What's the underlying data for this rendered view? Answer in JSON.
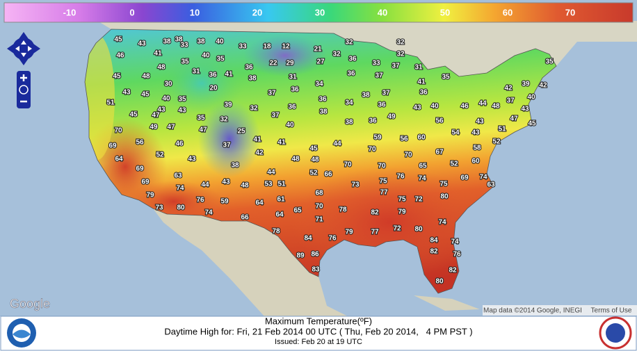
{
  "legend": {
    "labels": [
      -10,
      0,
      10,
      20,
      30,
      40,
      50,
      60,
      70
    ]
  },
  "map": {
    "temps": [
      45,
      46,
      43,
      41,
      38,
      48,
      33,
      38,
      38,
      40,
      33,
      18,
      12,
      21,
      32,
      32,
      32,
      32,
      35,
      40,
      35,
      36,
      22,
      29,
      27,
      36,
      33,
      37,
      31,
      45,
      48,
      31,
      36,
      41,
      38,
      31,
      34,
      36,
      37,
      35,
      35,
      43,
      30,
      45,
      40,
      35,
      20,
      37,
      36,
      38,
      37,
      41,
      36,
      42,
      39,
      42,
      51,
      43,
      43,
      39,
      32,
      36,
      36,
      38,
      34,
      36,
      43,
      40,
      46,
      44,
      48,
      37,
      43,
      40,
      45,
      47,
      35,
      32,
      37,
      38,
      36,
      49,
      47,
      45,
      70,
      49,
      47,
      47,
      25,
      40,
      51,
      43,
      54,
      43,
      60,
      56,
      59,
      56,
      56,
      46,
      37,
      41,
      41,
      45,
      44,
      70,
      69,
      52,
      43,
      38,
      42,
      48,
      48,
      67,
      58,
      52,
      60,
      64,
      69,
      63,
      44,
      52,
      66,
      70,
      70,
      70,
      65,
      52,
      69,
      74,
      44,
      43,
      48,
      53,
      51,
      73,
      75,
      76,
      74,
      75,
      69,
      74,
      63,
      79,
      76,
      59,
      64,
      61,
      68,
      77,
      75,
      72,
      80,
      73,
      80,
      74,
      66,
      64,
      65,
      70,
      78,
      82,
      79,
      71,
      78,
      79,
      77,
      72,
      80,
      74,
      84,
      76,
      84,
      74,
      82,
      76,
      86,
      89,
      83,
      82,
      80
    ],
    "google": "Google",
    "attribution": "Map data ©2014 Google, INEGI",
    "terms": "Terms of Use"
  },
  "footer": {
    "title": "Maximum Temperature(ºF)",
    "valid": "Daytime High for: Fri, 21 Feb 2014 00 UTC ( Thu, Feb 20 2014,   4 PM PST )",
    "issued": "Issued: Feb 20 at 19 UTC"
  }
}
